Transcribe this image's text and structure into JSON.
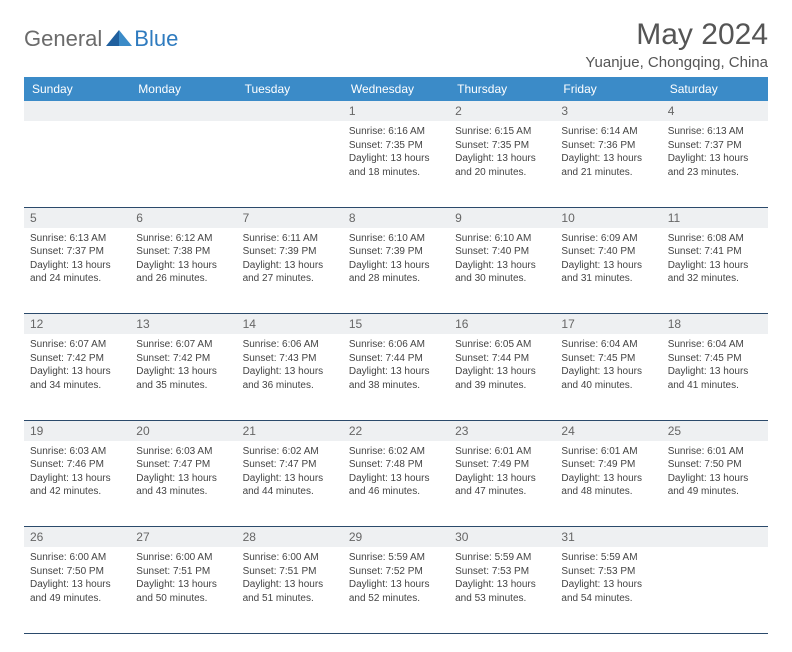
{
  "brand": {
    "part1": "General",
    "part2": "Blue"
  },
  "title": "May 2024",
  "location": "Yuanjue, Chongqing, China",
  "colors": {
    "header_bg": "#3b8bc8",
    "header_text": "#ffffff",
    "daynum_bg": "#eef0f2",
    "daynum_text": "#666666",
    "cell_text": "#444444",
    "border": "#2b4a6b",
    "logo_gray": "#6b6b6b",
    "logo_blue": "#2f7bbf",
    "title_color": "#555555"
  },
  "weekdays": [
    "Sunday",
    "Monday",
    "Tuesday",
    "Wednesday",
    "Thursday",
    "Friday",
    "Saturday"
  ],
  "weeks": [
    [
      null,
      null,
      null,
      {
        "n": "1",
        "sr": "6:16 AM",
        "ss": "7:35 PM",
        "dl": "13 hours and 18 minutes."
      },
      {
        "n": "2",
        "sr": "6:15 AM",
        "ss": "7:35 PM",
        "dl": "13 hours and 20 minutes."
      },
      {
        "n": "3",
        "sr": "6:14 AM",
        "ss": "7:36 PM",
        "dl": "13 hours and 21 minutes."
      },
      {
        "n": "4",
        "sr": "6:13 AM",
        "ss": "7:37 PM",
        "dl": "13 hours and 23 minutes."
      }
    ],
    [
      {
        "n": "5",
        "sr": "6:13 AM",
        "ss": "7:37 PM",
        "dl": "13 hours and 24 minutes."
      },
      {
        "n": "6",
        "sr": "6:12 AM",
        "ss": "7:38 PM",
        "dl": "13 hours and 26 minutes."
      },
      {
        "n": "7",
        "sr": "6:11 AM",
        "ss": "7:39 PM",
        "dl": "13 hours and 27 minutes."
      },
      {
        "n": "8",
        "sr": "6:10 AM",
        "ss": "7:39 PM",
        "dl": "13 hours and 28 minutes."
      },
      {
        "n": "9",
        "sr": "6:10 AM",
        "ss": "7:40 PM",
        "dl": "13 hours and 30 minutes."
      },
      {
        "n": "10",
        "sr": "6:09 AM",
        "ss": "7:40 PM",
        "dl": "13 hours and 31 minutes."
      },
      {
        "n": "11",
        "sr": "6:08 AM",
        "ss": "7:41 PM",
        "dl": "13 hours and 32 minutes."
      }
    ],
    [
      {
        "n": "12",
        "sr": "6:07 AM",
        "ss": "7:42 PM",
        "dl": "13 hours and 34 minutes."
      },
      {
        "n": "13",
        "sr": "6:07 AM",
        "ss": "7:42 PM",
        "dl": "13 hours and 35 minutes."
      },
      {
        "n": "14",
        "sr": "6:06 AM",
        "ss": "7:43 PM",
        "dl": "13 hours and 36 minutes."
      },
      {
        "n": "15",
        "sr": "6:06 AM",
        "ss": "7:44 PM",
        "dl": "13 hours and 38 minutes."
      },
      {
        "n": "16",
        "sr": "6:05 AM",
        "ss": "7:44 PM",
        "dl": "13 hours and 39 minutes."
      },
      {
        "n": "17",
        "sr": "6:04 AM",
        "ss": "7:45 PM",
        "dl": "13 hours and 40 minutes."
      },
      {
        "n": "18",
        "sr": "6:04 AM",
        "ss": "7:45 PM",
        "dl": "13 hours and 41 minutes."
      }
    ],
    [
      {
        "n": "19",
        "sr": "6:03 AM",
        "ss": "7:46 PM",
        "dl": "13 hours and 42 minutes."
      },
      {
        "n": "20",
        "sr": "6:03 AM",
        "ss": "7:47 PM",
        "dl": "13 hours and 43 minutes."
      },
      {
        "n": "21",
        "sr": "6:02 AM",
        "ss": "7:47 PM",
        "dl": "13 hours and 44 minutes."
      },
      {
        "n": "22",
        "sr": "6:02 AM",
        "ss": "7:48 PM",
        "dl": "13 hours and 46 minutes."
      },
      {
        "n": "23",
        "sr": "6:01 AM",
        "ss": "7:49 PM",
        "dl": "13 hours and 47 minutes."
      },
      {
        "n": "24",
        "sr": "6:01 AM",
        "ss": "7:49 PM",
        "dl": "13 hours and 48 minutes."
      },
      {
        "n": "25",
        "sr": "6:01 AM",
        "ss": "7:50 PM",
        "dl": "13 hours and 49 minutes."
      }
    ],
    [
      {
        "n": "26",
        "sr": "6:00 AM",
        "ss": "7:50 PM",
        "dl": "13 hours and 49 minutes."
      },
      {
        "n": "27",
        "sr": "6:00 AM",
        "ss": "7:51 PM",
        "dl": "13 hours and 50 minutes."
      },
      {
        "n": "28",
        "sr": "6:00 AM",
        "ss": "7:51 PM",
        "dl": "13 hours and 51 minutes."
      },
      {
        "n": "29",
        "sr": "5:59 AM",
        "ss": "7:52 PM",
        "dl": "13 hours and 52 minutes."
      },
      {
        "n": "30",
        "sr": "5:59 AM",
        "ss": "7:53 PM",
        "dl": "13 hours and 53 minutes."
      },
      {
        "n": "31",
        "sr": "5:59 AM",
        "ss": "7:53 PM",
        "dl": "13 hours and 54 minutes."
      },
      null
    ]
  ],
  "labels": {
    "sunrise": "Sunrise:",
    "sunset": "Sunset:",
    "daylight": "Daylight:"
  }
}
